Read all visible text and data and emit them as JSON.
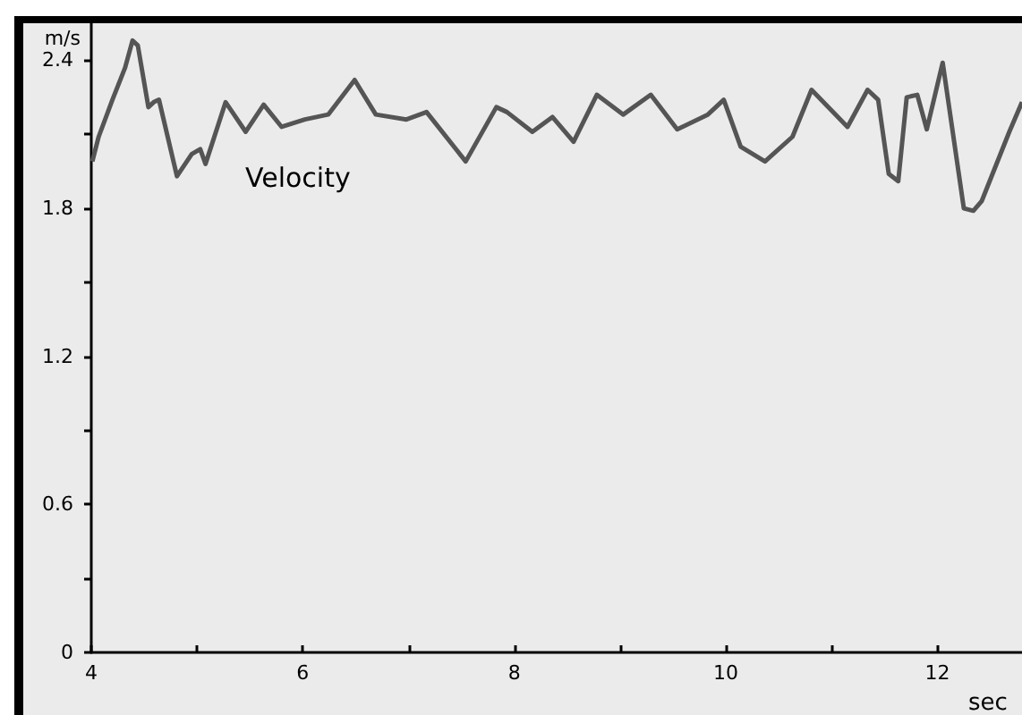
{
  "chart_data": {
    "type": "line",
    "xlabel": "sec",
    "ylabel": "m/s",
    "annotations": [
      "Velocity"
    ],
    "xlim": [
      4,
      12.8
    ],
    "ylim": [
      0,
      2.55
    ],
    "xticks": [
      4,
      {
        "value": 5,
        "label": null
      },
      6,
      {
        "value": 7,
        "label": null
      },
      8,
      {
        "value": 9,
        "label": null
      },
      10,
      {
        "value": 11,
        "label": null
      },
      12
    ],
    "yticks": [
      0,
      {
        "value": 0.3,
        "label": null
      },
      0.6,
      {
        "value": 0.9,
        "label": null
      },
      1.2,
      {
        "value": 1.5,
        "label": null
      },
      1.8,
      {
        "value": 2.1,
        "label": null
      },
      2.4
    ],
    "grid": false,
    "marker": "none",
    "line_style": "solid",
    "series": [
      {
        "color": "#555555",
        "x": [
          4.01,
          4.07,
          4.2,
          4.32,
          4.39,
          4.44,
          4.54,
          4.59,
          4.64,
          4.81,
          4.95,
          5.03,
          5.08,
          5.27,
          5.46,
          5.63,
          5.8,
          6.02,
          6.24,
          6.49,
          6.69,
          6.98,
          7.17,
          7.54,
          7.83,
          7.93,
          8.17,
          8.36,
          8.56,
          8.78,
          9.03,
          9.29,
          9.54,
          9.83,
          9.98,
          10.14,
          10.37,
          10.63,
          10.81,
          11.15,
          11.34,
          11.44,
          11.54,
          11.63,
          11.71,
          11.81,
          11.9,
          12.05,
          12.25,
          12.34,
          12.42,
          12.68,
          12.8
        ],
        "values": [
          1.99,
          2.09,
          2.24,
          2.37,
          2.48,
          2.46,
          2.21,
          2.23,
          2.24,
          1.93,
          2.02,
          2.04,
          1.98,
          2.23,
          2.11,
          2.22,
          2.13,
          2.16,
          2.18,
          2.32,
          2.18,
          2.16,
          2.19,
          1.99,
          2.21,
          2.19,
          2.11,
          2.17,
          2.07,
          2.26,
          2.18,
          2.26,
          2.12,
          2.18,
          2.24,
          2.05,
          1.99,
          2.09,
          2.28,
          2.13,
          2.28,
          2.24,
          1.94,
          1.91,
          2.25,
          2.26,
          2.12,
          2.39,
          1.8,
          1.79,
          1.83,
          2.11,
          2.23
        ]
      }
    ]
  }
}
